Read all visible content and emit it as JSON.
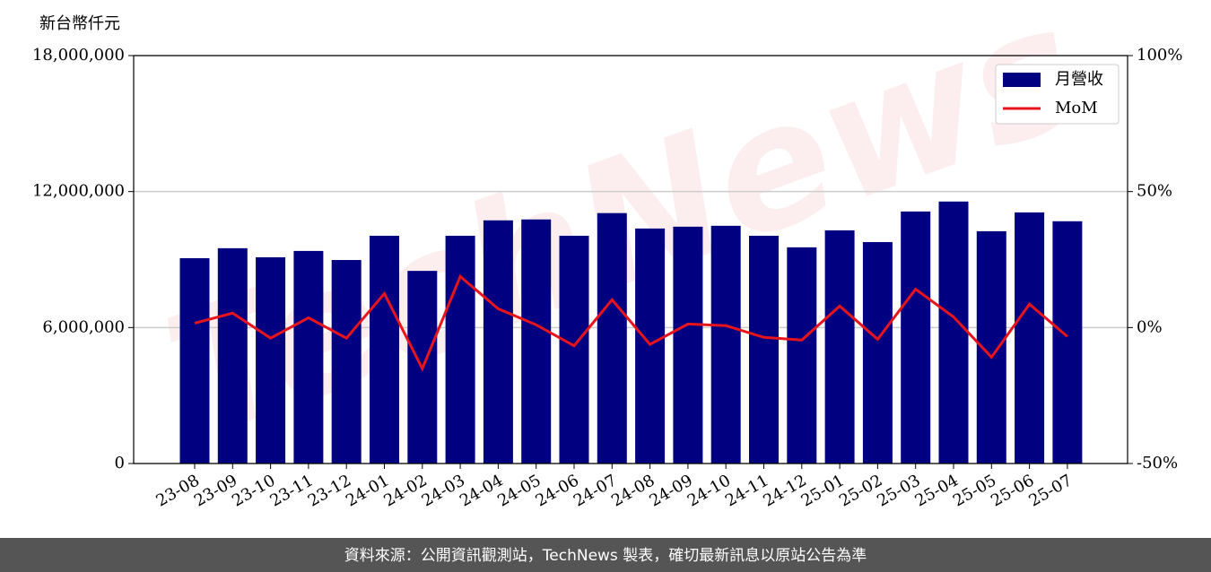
{
  "chart_data": {
    "type": "bar",
    "y_label": "新台幣仟元",
    "watermark": "TechNews",
    "source": "資料來源：公開資訊觀測站，TechNews 製表，確切最新訊息以原站公告為準",
    "categories": [
      "23-08",
      "23-09",
      "23-10",
      "23-11",
      "23-12",
      "24-01",
      "24-02",
      "24-03",
      "24-04",
      "24-05",
      "24-06",
      "24-07",
      "24-08",
      "24-09",
      "24-10",
      "24-11",
      "24-12",
      "25-01",
      "25-02",
      "25-03",
      "25-04",
      "25-05",
      "25-06",
      "25-07"
    ],
    "series": [
      {
        "name": "月營收",
        "type": "bar",
        "color": "#000080",
        "values": [
          9060000,
          9500000,
          9100000,
          9380000,
          8980000,
          10050000,
          8500000,
          10050000,
          10730000,
          10770000,
          10050000,
          11050000,
          10370000,
          10450000,
          10490000,
          10050000,
          9540000,
          10290000,
          9770000,
          11120000,
          11560000,
          10250000,
          11080000,
          10690000
        ]
      },
      {
        "name": "MoM",
        "type": "line",
        "axis": "y2",
        "color": "#e8141c",
        "values": [
          1.6,
          5.3,
          -3.9,
          3.6,
          -3.9,
          12.5,
          -15.1,
          18.8,
          6.9,
          1.0,
          -6.7,
          10.2,
          -6.2,
          1.3,
          0.7,
          -3.6,
          -4.6,
          7.9,
          -4.3,
          14.1,
          3.9,
          -10.9,
          8.6,
          -3.3
        ]
      }
    ],
    "ylim": [
      0,
      18000000
    ],
    "yticks": [
      0,
      {
        "value": 6000000,
        "label": "6,000,000"
      },
      {
        "value": 12000000,
        "label": "12,000,000"
      },
      {
        "value": 18000000,
        "label": "18,000,000"
      }
    ],
    "y2lim": [
      -50,
      100
    ],
    "y2ticks": [
      {
        "value": -50,
        "label": "-50%"
      },
      {
        "value": 0,
        "label": "0%"
      },
      {
        "value": 50,
        "label": "50%"
      },
      {
        "value": 100,
        "label": "100%"
      }
    ],
    "grid": true,
    "legend": "upper right"
  }
}
